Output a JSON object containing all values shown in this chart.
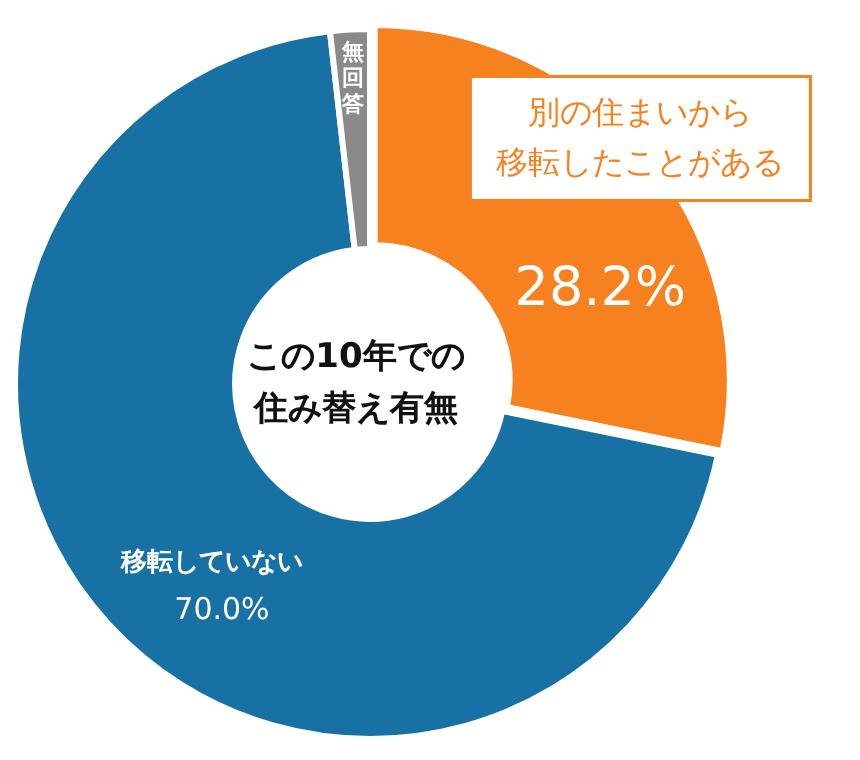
{
  "chart_data": {
    "type": "donut",
    "title": "この10年での住み替え有無",
    "categories": [
      "別の住まいから移転したことがある",
      "移転していない",
      "無回答"
    ],
    "values": [
      28.2,
      70.0,
      1.8
    ],
    "colors": [
      "#f7801f",
      "#1871a4",
      "#8a8a8a"
    ],
    "value_labels": [
      "28.2%",
      "70.0%",
      null
    ],
    "legend": false
  }
}
